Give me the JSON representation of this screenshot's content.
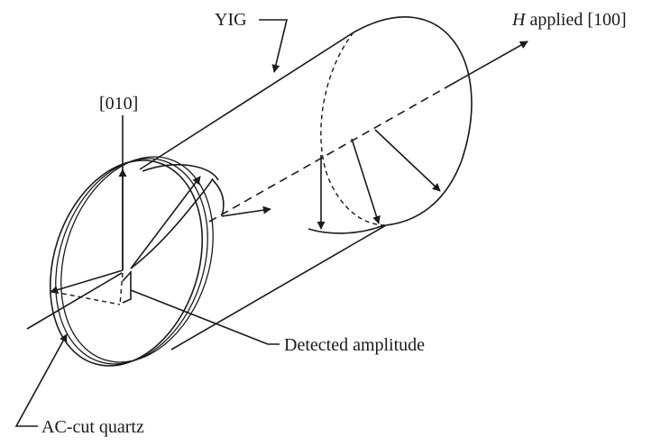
{
  "labels": {
    "yig": "YIG",
    "h_symbol": "H",
    "h_applied": " applied [100]",
    "axis_010": "[010]",
    "detected_amplitude": "Detected amplitude",
    "ac_cut_quartz": "AC-cut quartz"
  },
  "colors": {
    "ink": "#1a1a1a",
    "background": "#ffffff"
  }
}
